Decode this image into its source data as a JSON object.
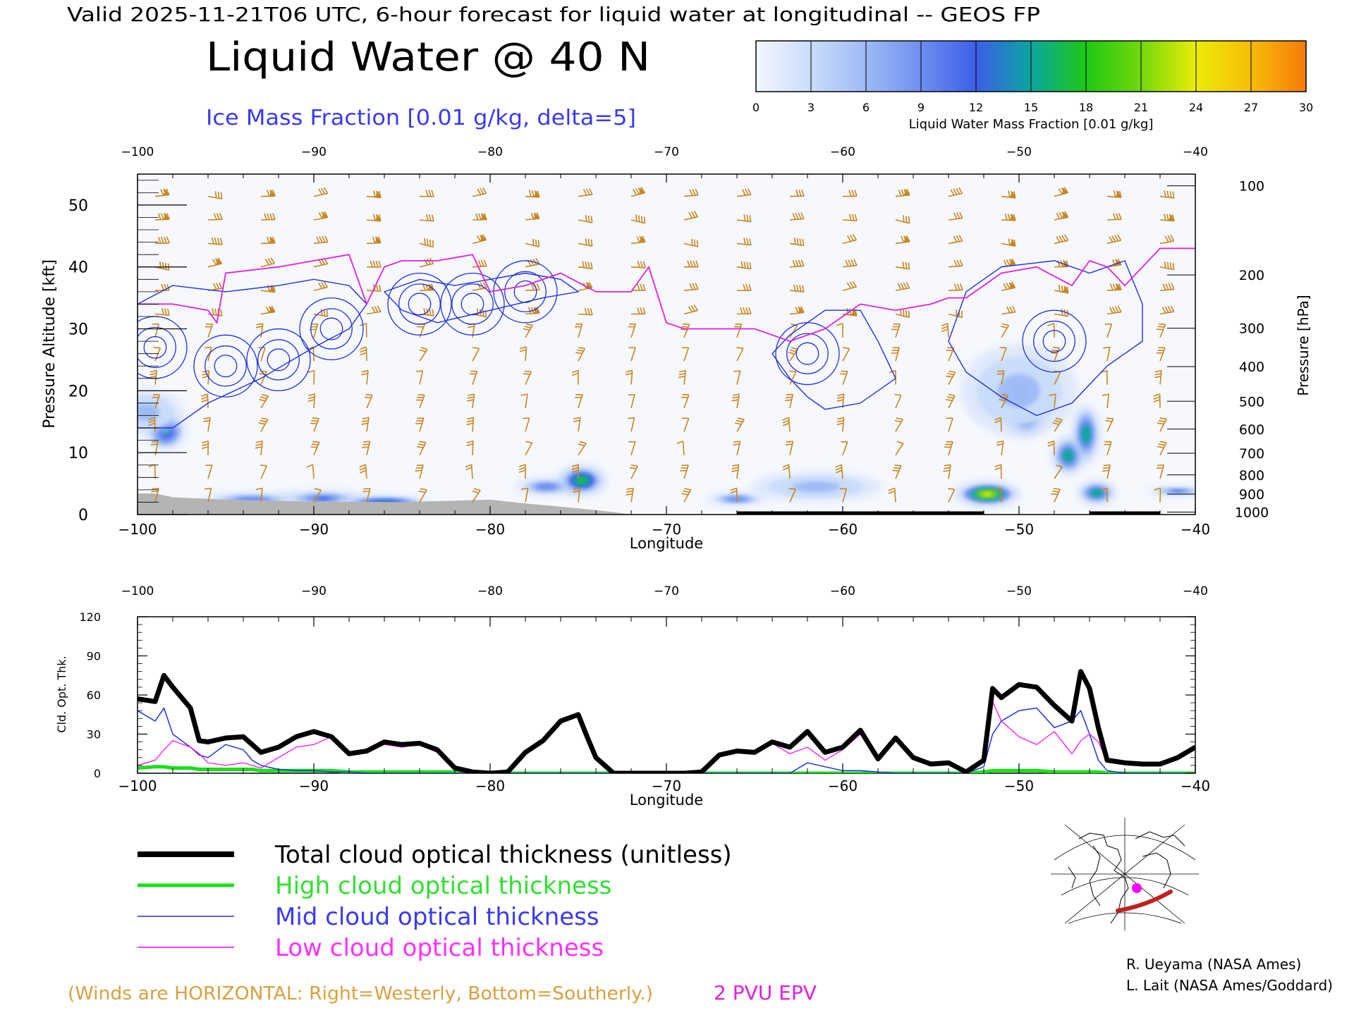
{
  "header": {
    "valid_line": "Valid 2025-11-21T06 UTC, 6-hour forecast for liquid water at longitudinal -- GEOS FP",
    "main_title": "Liquid Water @ 40 N",
    "subtitle": "Ice Mass Fraction [0.01 g/kg, delta=5]"
  },
  "colorbar": {
    "label": "Liquid Water Mass Fraction [0.01 g/kg]",
    "ticks": [
      "0",
      "3",
      "6",
      "9",
      "12",
      "15",
      "18",
      "21",
      "24",
      "27",
      "30"
    ],
    "colors": [
      "#f4f7fd",
      "#c9dcfb",
      "#9dbaf6",
      "#6e8ff0",
      "#3d5ee8",
      "#0aa6a0",
      "#1ec814",
      "#72d80a",
      "#ecec08",
      "#f7bc08",
      "#f77a08"
    ]
  },
  "chart_data": [
    {
      "type": "heatmap",
      "title": "Liquid Water @ 40 N",
      "xlabel": "Longitude",
      "ylabel": "Pressure Altitude [kft]",
      "y2label": "Pressure [hPa]",
      "xlim": [
        -100,
        -40
      ],
      "ylim": [
        0,
        55
      ],
      "xticks": [
        "−100",
        "−90",
        "−80",
        "−70",
        "−60",
        "−50",
        "−40"
      ],
      "xtick_values": [
        -100,
        -90,
        -80,
        -70,
        -60,
        -50,
        -40
      ],
      "yticks": [
        "0",
        "10",
        "20",
        "30",
        "40",
        "50"
      ],
      "ytick_values": [
        0,
        10,
        20,
        30,
        40,
        50
      ],
      "pressure_ticks": [
        "100",
        "200",
        "300",
        "400",
        "500",
        "600",
        "700",
        "800",
        "900",
        "1000"
      ],
      "pressure_tick_kft": [
        53.1,
        38.7,
        30.1,
        23.9,
        18.3,
        13.8,
        9.9,
        6.4,
        3.3,
        0.4
      ],
      "liquid_water_blobs": [
        {
          "lon": -98.4,
          "kft": 13.5,
          "value": 14,
          "wlon": 0.8,
          "hkft": 2.2
        },
        {
          "lon": -99.5,
          "kft": 16.5,
          "value": 6,
          "wlon": 1.4,
          "hkft": 2.5
        },
        {
          "lon": -93.5,
          "kft": 2.4,
          "value": 9,
          "wlon": 2.0,
          "hkft": 0.8
        },
        {
          "lon": -89.5,
          "kft": 2.6,
          "value": 12,
          "wlon": 1.8,
          "hkft": 0.9
        },
        {
          "lon": -86.0,
          "kft": 2.0,
          "value": 14,
          "wlon": 1.8,
          "hkft": 0.7
        },
        {
          "lon": -76.8,
          "kft": 4.5,
          "value": 10,
          "wlon": 1.2,
          "hkft": 1.0
        },
        {
          "lon": -74.8,
          "kft": 5.5,
          "value": 18,
          "wlon": 0.9,
          "hkft": 1.6
        },
        {
          "lon": -66.0,
          "kft": 2.5,
          "value": 10,
          "wlon": 1.2,
          "hkft": 0.7
        },
        {
          "lon": -61.5,
          "kft": 4.5,
          "value": 6,
          "wlon": 2.5,
          "hkft": 1.6
        },
        {
          "lon": -51.8,
          "kft": 3.3,
          "value": 24,
          "wlon": 1.2,
          "hkft": 1.3
        },
        {
          "lon": -49.6,
          "kft": 15.8,
          "value": 18,
          "wlon": 0.7,
          "hkft": 2.0
        },
        {
          "lon": -47.2,
          "kft": 9.5,
          "value": 16,
          "wlon": 0.6,
          "hkft": 2.0
        },
        {
          "lon": -46.2,
          "kft": 13.0,
          "value": 16,
          "wlon": 0.5,
          "hkft": 3.0
        },
        {
          "lon": -45.6,
          "kft": 3.5,
          "value": 16,
          "wlon": 0.7,
          "hkft": 1.2
        },
        {
          "lon": -41.0,
          "kft": 3.8,
          "value": 12,
          "wlon": 1.2,
          "hkft": 0.5
        },
        {
          "lon": -50.0,
          "kft": 20.0,
          "value": 6,
          "wlon": 2.2,
          "hkft": 5.0
        }
      ],
      "epv_2pvu_line": {
        "lon": [
          -100,
          -98,
          -96,
          -95.5,
          -95,
          -92,
          -90,
          -88,
          -87,
          -86,
          -85,
          -83,
          -81,
          -80,
          -78,
          -76,
          -74,
          -72,
          -71,
          -70,
          -69,
          -67,
          -65,
          -63,
          -61,
          -59,
          -57,
          -55,
          -54,
          -53,
          -51,
          -49,
          -47,
          -46,
          -45,
          -44,
          -42,
          -40
        ],
        "kft": [
          34,
          34,
          33,
          31,
          39,
          40,
          41,
          42,
          34,
          40,
          41,
          41,
          42,
          36,
          37,
          39,
          36,
          36,
          40,
          31,
          30,
          30,
          30,
          28,
          30,
          34,
          33,
          34,
          35,
          35,
          39,
          40,
          37,
          41,
          40,
          37,
          43,
          43
        ]
      },
      "ice_contour_centers": [
        {
          "lon": -99,
          "kft": 27
        },
        {
          "lon": -95,
          "kft": 24
        },
        {
          "lon": -92,
          "kft": 25
        },
        {
          "lon": -89,
          "kft": 30
        },
        {
          "lon": -84,
          "kft": 34
        },
        {
          "lon": -81,
          "kft": 34
        },
        {
          "lon": -78,
          "kft": 36
        },
        {
          "lon": -62,
          "kft": 26
        },
        {
          "lon": -48,
          "kft": 28
        }
      ]
    },
    {
      "type": "line",
      "xlabel": "Longitude",
      "ylabel": "Cld. Opt. Thk.",
      "xlim": [
        -100,
        -40
      ],
      "ylim": [
        0,
        120
      ],
      "xticks": [
        "−100",
        "−90",
        "−80",
        "−70",
        "−60",
        "−50",
        "−40"
      ],
      "xtick_values": [
        -100,
        -90,
        -80,
        -70,
        -60,
        -50,
        -40
      ],
      "yticks": [
        "0",
        "30",
        "60",
        "90",
        "120"
      ],
      "ytick_values": [
        0,
        30,
        60,
        90,
        120
      ],
      "x": [
        -100,
        -99,
        -98.5,
        -98,
        -97,
        -96.5,
        -96,
        -95,
        -94,
        -93.5,
        -93,
        -92,
        -91,
        -90,
        -89,
        -88,
        -87,
        -86,
        -85,
        -84,
        -83,
        -82,
        -81,
        -80,
        -79,
        -78,
        -77,
        -76,
        -75,
        -74.5,
        -74,
        -73,
        -72,
        -71,
        -70,
        -69,
        -68,
        -67,
        -66,
        -65,
        -64,
        -63,
        -62,
        -61,
        -60,
        -59,
        -58,
        -57,
        -56,
        -55,
        -54,
        -53,
        -52,
        -51.5,
        -51,
        -50,
        -49,
        -48,
        -47,
        -46.5,
        -46,
        -45.5,
        -45,
        -44,
        -43,
        -42,
        -41,
        -40
      ],
      "series": [
        {
          "name": "Total cloud optical thickness (unitless)",
          "color": "#000000",
          "values": [
            57,
            55,
            75,
            66,
            50,
            25,
            24,
            27,
            28,
            22,
            16,
            20,
            28,
            32,
            28,
            15,
            17,
            24,
            22,
            23,
            18,
            4,
            1,
            0,
            1,
            16,
            25,
            40,
            45,
            28,
            12,
            0,
            0,
            0,
            0,
            0,
            1,
            14,
            17,
            16,
            24,
            20,
            32,
            16,
            20,
            33,
            11,
            27,
            12,
            7,
            8,
            1,
            10,
            65,
            58,
            68,
            66,
            52,
            40,
            78,
            65,
            35,
            10,
            8,
            7,
            7,
            12,
            20
          ]
        },
        {
          "name": "High cloud optical thickness",
          "color": "#18e018",
          "values": [
            4,
            5,
            5,
            4,
            4,
            3,
            3,
            3,
            3,
            3,
            2,
            2,
            2,
            2,
            2,
            1,
            1,
            1,
            1,
            1,
            1,
            1,
            0,
            0,
            0,
            0,
            0,
            0,
            0,
            0,
            0,
            0,
            0,
            0,
            0,
            0,
            0,
            0,
            0,
            0,
            0,
            0,
            0,
            0,
            0,
            0,
            0,
            0,
            0,
            0,
            0,
            0,
            1,
            2,
            2,
            2,
            2,
            1,
            1,
            1,
            1,
            1,
            0,
            0,
            0,
            0,
            0,
            0
          ]
        },
        {
          "name": "Mid cloud optical thickness",
          "color": "#2030e0",
          "values": [
            48,
            40,
            50,
            30,
            20,
            14,
            12,
            22,
            18,
            10,
            6,
            3,
            2,
            2,
            1,
            1,
            0,
            0,
            0,
            0,
            0,
            0,
            0,
            0,
            0,
            0,
            0,
            0,
            0,
            0,
            0,
            0,
            0,
            0,
            0,
            0,
            0,
            0,
            0,
            0,
            0,
            0,
            8,
            5,
            2,
            2,
            1,
            0,
            0,
            0,
            0,
            0,
            5,
            30,
            40,
            48,
            50,
            35,
            40,
            48,
            30,
            10,
            2,
            0,
            0,
            0,
            0,
            0
          ]
        },
        {
          "name": "Low cloud optical thickness",
          "color": "#ff00ff",
          "values": [
            6,
            10,
            18,
            25,
            20,
            15,
            8,
            6,
            8,
            6,
            4,
            12,
            20,
            22,
            28,
            15,
            16,
            22,
            20,
            22,
            16,
            3,
            1,
            0,
            1,
            15,
            25,
            40,
            44,
            26,
            10,
            0,
            0,
            0,
            0,
            0,
            1,
            13,
            17,
            16,
            23,
            15,
            20,
            10,
            18,
            30,
            10,
            26,
            12,
            7,
            8,
            1,
            8,
            55,
            40,
            28,
            22,
            32,
            15,
            25,
            30,
            24,
            9,
            8,
            7,
            7,
            12,
            20
          ]
        }
      ]
    }
  ],
  "legend": {
    "entries": [
      {
        "label": "Total cloud optical thickness (unitless)",
        "color": "#000000"
      },
      {
        "label": "High cloud optical thickness",
        "color": "#18e018"
      },
      {
        "label": "Mid cloud optical thickness",
        "color": "#2030e0"
      },
      {
        "label": "Low cloud optical thickness",
        "color": "#ff00ff"
      }
    ]
  },
  "footer": {
    "winds_note": "(Winds are HORIZONTAL: Right=Westerly, Bottom=Southerly.)",
    "epv_note": "2 PVU EPV",
    "credit_1": "R. Ueyama (NASA Ames)",
    "credit_2": "L. Lait (NASA Ames/Goddard)"
  },
  "colors": {
    "wind_barb": "#c8861e",
    "ice_contour": "#2030e0",
    "epv_line": "#e020e0",
    "terrain": "#b4b4b4",
    "winds_note": "#d8a040",
    "epv_note": "#e020e0",
    "map_track": "#c02020",
    "map_dot": "#ff00ff"
  }
}
